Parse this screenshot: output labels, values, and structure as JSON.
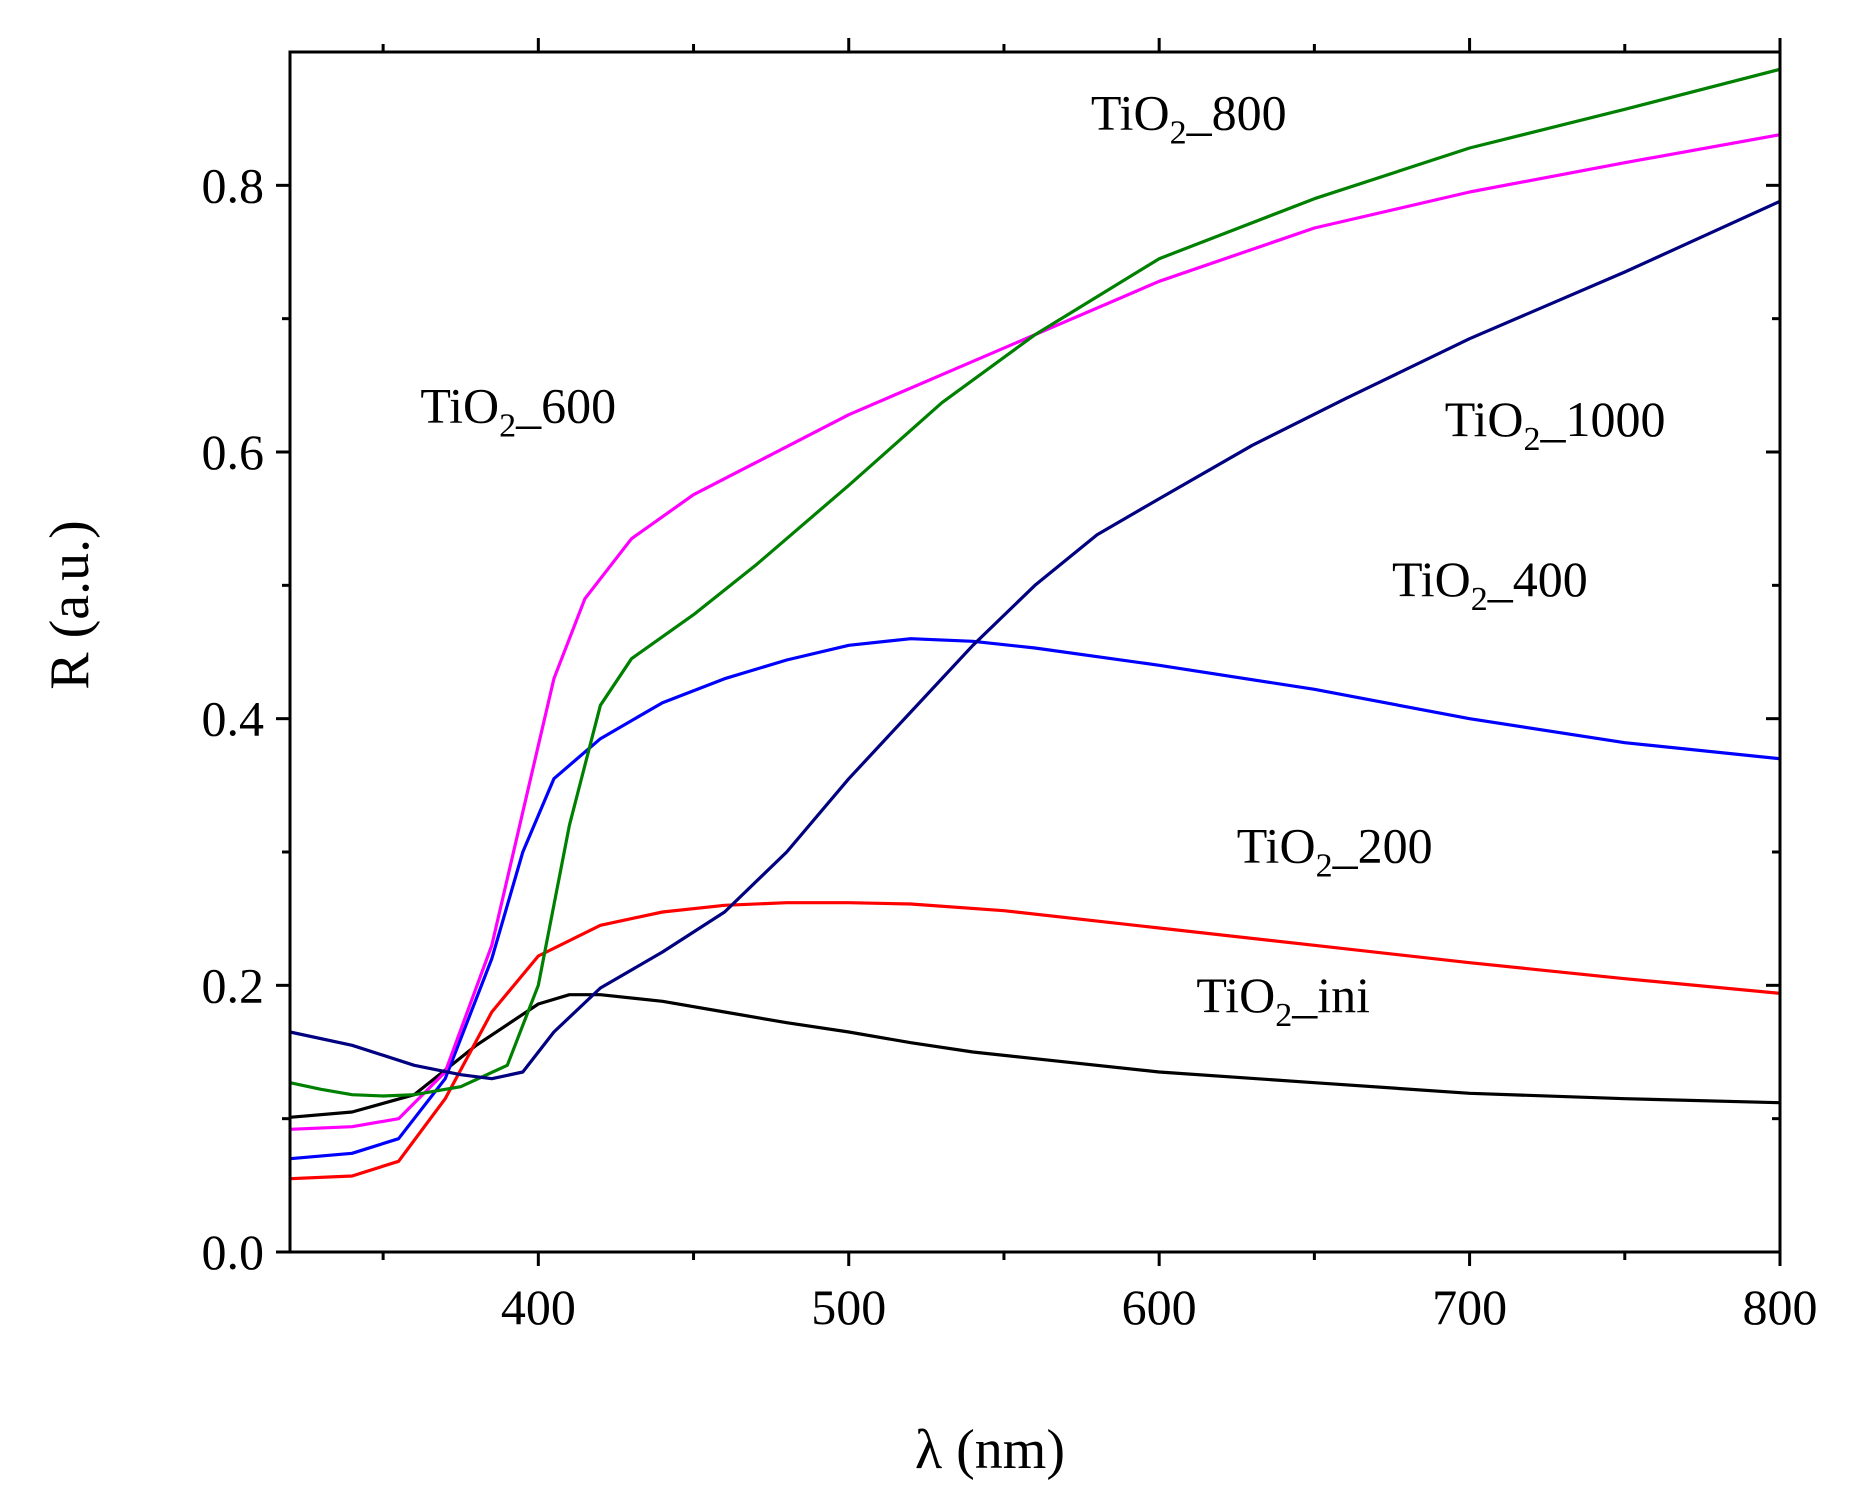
{
  "chart_data": {
    "type": "line",
    "title": "",
    "xlabel": "λ (nm)",
    "ylabel": "R (a.u.)",
    "xlim": [
      320,
      800
    ],
    "ylim": [
      0.0,
      0.9
    ],
    "x_ticks": [
      400,
      500,
      600,
      700,
      800
    ],
    "x_tick_labels": [
      "400",
      "500",
      "600",
      "700",
      "800"
    ],
    "x_minor_ticks": [
      350,
      450,
      550,
      650,
      750
    ],
    "y_ticks": [
      0.0,
      0.2,
      0.4,
      0.6,
      0.8
    ],
    "y_tick_labels": [
      "0.0",
      "0.2",
      "0.4",
      "0.6",
      "0.8"
    ],
    "y_minor_ticks": [
      0.1,
      0.3,
      0.5,
      0.7
    ],
    "grid": false,
    "legend": "inline labels",
    "series": [
      {
        "name": "TiO2_ini",
        "label_main": "TiO",
        "label_sub": "2",
        "label_suffix": "_ini",
        "color": "#000000",
        "label_at": [
          612,
          0.18
        ],
        "points": [
          [
            320,
            0.101
          ],
          [
            340,
            0.105
          ],
          [
            360,
            0.118
          ],
          [
            380,
            0.155
          ],
          [
            400,
            0.186
          ],
          [
            410,
            0.193
          ],
          [
            420,
            0.193
          ],
          [
            440,
            0.188
          ],
          [
            460,
            0.18
          ],
          [
            480,
            0.172
          ],
          [
            500,
            0.165
          ],
          [
            520,
            0.157
          ],
          [
            540,
            0.15
          ],
          [
            560,
            0.145
          ],
          [
            600,
            0.135
          ],
          [
            650,
            0.127
          ],
          [
            700,
            0.119
          ],
          [
            750,
            0.115
          ],
          [
            800,
            0.112
          ]
        ]
      },
      {
        "name": "TiO2_200",
        "label_main": "TiO",
        "label_sub": "2",
        "label_suffix": "_200",
        "color": "#ff0000",
        "label_at": [
          625,
          0.292
        ],
        "points": [
          [
            320,
            0.055
          ],
          [
            340,
            0.057
          ],
          [
            355,
            0.068
          ],
          [
            370,
            0.115
          ],
          [
            385,
            0.18
          ],
          [
            400,
            0.222
          ],
          [
            420,
            0.245
          ],
          [
            440,
            0.255
          ],
          [
            460,
            0.26
          ],
          [
            480,
            0.262
          ],
          [
            500,
            0.262
          ],
          [
            520,
            0.261
          ],
          [
            550,
            0.256
          ],
          [
            600,
            0.243
          ],
          [
            650,
            0.23
          ],
          [
            700,
            0.217
          ],
          [
            750,
            0.205
          ],
          [
            800,
            0.194
          ]
        ]
      },
      {
        "name": "TiO2_400",
        "label_main": "TiO",
        "label_sub": "2",
        "label_suffix": "_400",
        "color": "#0000ff",
        "label_at": [
          675,
          0.492
        ],
        "points": [
          [
            320,
            0.07
          ],
          [
            340,
            0.074
          ],
          [
            355,
            0.085
          ],
          [
            370,
            0.13
          ],
          [
            385,
            0.22
          ],
          [
            395,
            0.3
          ],
          [
            405,
            0.355
          ],
          [
            420,
            0.385
          ],
          [
            440,
            0.412
          ],
          [
            460,
            0.43
          ],
          [
            480,
            0.444
          ],
          [
            500,
            0.455
          ],
          [
            520,
            0.46
          ],
          [
            540,
            0.458
          ],
          [
            560,
            0.453
          ],
          [
            600,
            0.44
          ],
          [
            650,
            0.422
          ],
          [
            700,
            0.4
          ],
          [
            750,
            0.382
          ],
          [
            800,
            0.37
          ]
        ]
      },
      {
        "name": "TiO2_600",
        "label_main": "TiO",
        "label_sub": "2",
        "label_suffix": "_600",
        "color": "#ff00ff",
        "label_at": [
          362,
          0.622
        ],
        "points": [
          [
            320,
            0.092
          ],
          [
            340,
            0.094
          ],
          [
            355,
            0.1
          ],
          [
            370,
            0.135
          ],
          [
            385,
            0.23
          ],
          [
            395,
            0.33
          ],
          [
            405,
            0.43
          ],
          [
            415,
            0.49
          ],
          [
            430,
            0.535
          ],
          [
            450,
            0.568
          ],
          [
            470,
            0.592
          ],
          [
            500,
            0.628
          ],
          [
            530,
            0.658
          ],
          [
            560,
            0.688
          ],
          [
            600,
            0.728
          ],
          [
            650,
            0.768
          ],
          [
            700,
            0.795
          ],
          [
            750,
            0.817
          ],
          [
            800,
            0.838
          ]
        ]
      },
      {
        "name": "TiO2_800",
        "label_main": "TiO",
        "label_sub": "2",
        "label_suffix": "_800",
        "color": "#008000",
        "label_at": [
          578,
          0.842
        ],
        "points": [
          [
            320,
            0.127
          ],
          [
            330,
            0.122
          ],
          [
            340,
            0.118
          ],
          [
            350,
            0.117
          ],
          [
            360,
            0.118
          ],
          [
            375,
            0.124
          ],
          [
            390,
            0.14
          ],
          [
            400,
            0.2
          ],
          [
            410,
            0.32
          ],
          [
            420,
            0.41
          ],
          [
            430,
            0.445
          ],
          [
            450,
            0.478
          ],
          [
            470,
            0.515
          ],
          [
            500,
            0.575
          ],
          [
            530,
            0.637
          ],
          [
            560,
            0.688
          ],
          [
            600,
            0.745
          ],
          [
            650,
            0.79
          ],
          [
            700,
            0.828
          ],
          [
            750,
            0.857
          ],
          [
            800,
            0.887
          ]
        ]
      },
      {
        "name": "TiO2_1000",
        "label_main": "TiO",
        "label_sub": "2",
        "label_suffix": "_1000",
        "color": "#000080",
        "label_at": [
          692,
          0.612
        ],
        "points": [
          [
            320,
            0.165
          ],
          [
            340,
            0.155
          ],
          [
            360,
            0.14
          ],
          [
            375,
            0.133
          ],
          [
            385,
            0.13
          ],
          [
            395,
            0.135
          ],
          [
            405,
            0.165
          ],
          [
            420,
            0.198
          ],
          [
            440,
            0.225
          ],
          [
            460,
            0.255
          ],
          [
            480,
            0.3
          ],
          [
            500,
            0.355
          ],
          [
            520,
            0.405
          ],
          [
            540,
            0.455
          ],
          [
            560,
            0.5
          ],
          [
            580,
            0.538
          ],
          [
            600,
            0.565
          ],
          [
            630,
            0.605
          ],
          [
            660,
            0.64
          ],
          [
            700,
            0.685
          ],
          [
            750,
            0.735
          ],
          [
            800,
            0.788
          ]
        ]
      }
    ]
  }
}
